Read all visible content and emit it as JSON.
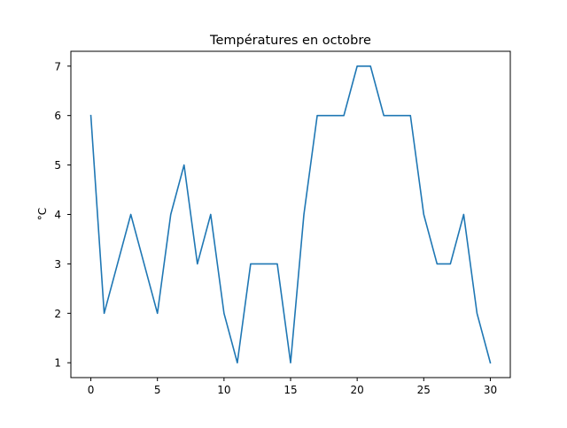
{
  "chart_data": {
    "type": "line",
    "title": "Températures en octobre",
    "xlabel": "",
    "ylabel": "°C",
    "xlim": [
      -1.5,
      31.5
    ],
    "ylim": [
      0.7,
      7.3
    ],
    "xticks": [
      0,
      5,
      10,
      15,
      20,
      25,
      30
    ],
    "yticks": [
      1,
      2,
      3,
      4,
      5,
      6,
      7
    ],
    "grid": false,
    "series": [
      {
        "color": "#1f77b4",
        "x": [
          0,
          1,
          2,
          3,
          4,
          5,
          6,
          7,
          8,
          9,
          10,
          11,
          12,
          13,
          14,
          15,
          16,
          17,
          18,
          19,
          20,
          21,
          22,
          23,
          24,
          25,
          26,
          27,
          28,
          29,
          30
        ],
        "values": [
          6,
          2,
          3,
          4,
          3,
          2,
          4,
          5,
          3,
          4,
          2,
          1,
          3,
          3,
          3,
          1,
          4,
          6,
          6,
          6,
          7,
          7,
          6,
          6,
          6,
          4,
          3,
          3,
          4,
          2,
          1
        ]
      }
    ]
  }
}
